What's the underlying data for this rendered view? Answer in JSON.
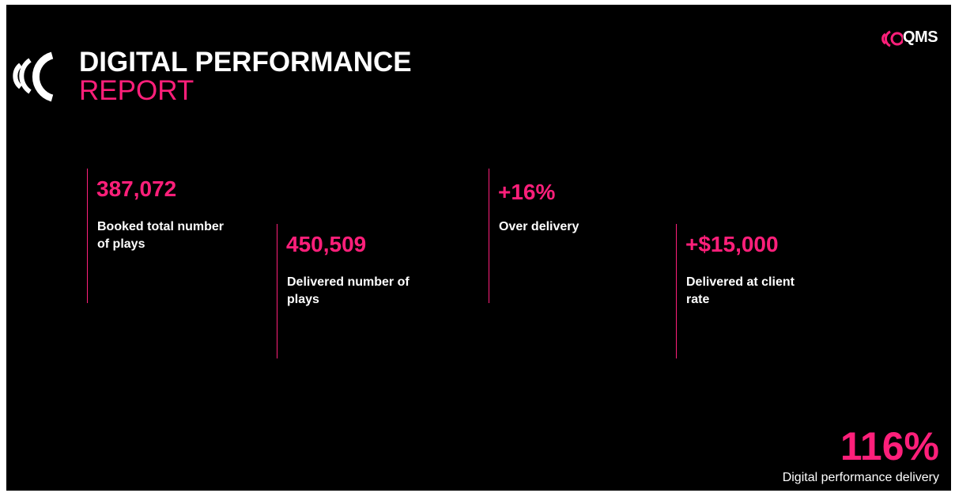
{
  "header": {
    "title": "DIGITAL PERFORMANCE",
    "subtitle": "REPORT",
    "brand": "QMS"
  },
  "stats": [
    {
      "value": "387,072",
      "label": "Booked total number of plays"
    },
    {
      "value": "450,509",
      "label": "Delivered number of plays"
    },
    {
      "value": "+16%",
      "label": "Over delivery"
    },
    {
      "value": "+$15,000",
      "label": "Delivered at client rate"
    }
  ],
  "footer": {
    "value": "116%",
    "label": "Digital performance delivery"
  }
}
